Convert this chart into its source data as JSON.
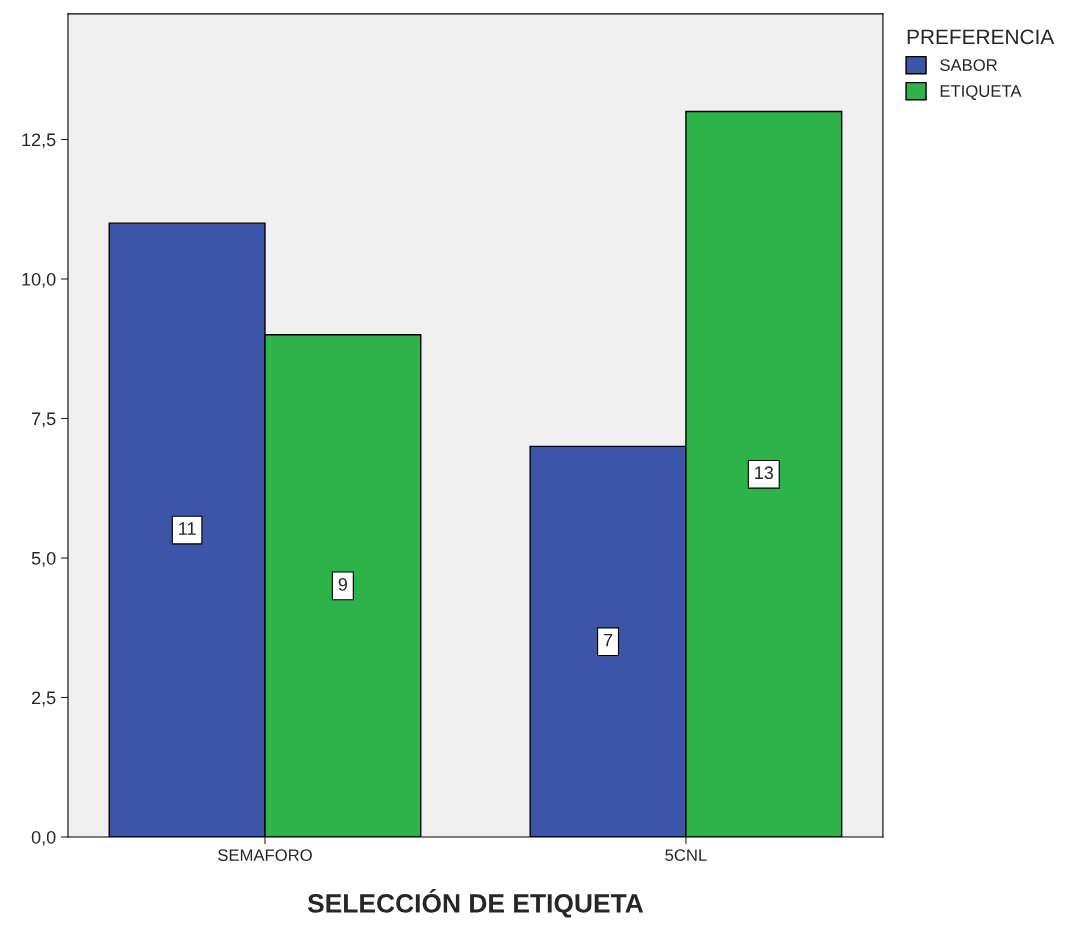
{
  "chart_data": {
    "type": "bar",
    "xlabel": "SELECCIÓN DE ETIQUETA",
    "legend_title": "PREFERENCIA",
    "categories": [
      "SEMAFORO",
      "5CNL"
    ],
    "series": [
      {
        "name": "SABOR",
        "color": "#3d55a8",
        "values": [
          11,
          7
        ]
      },
      {
        "name": "ETIQUETA",
        "color": "#2db34a",
        "values": [
          9,
          13
        ]
      }
    ],
    "ylim": [
      0,
      14.75
    ],
    "yticks": [
      {
        "value": 0,
        "label": "0,0"
      },
      {
        "value": 2.5,
        "label": "2,5"
      },
      {
        "value": 5,
        "label": "5,0"
      },
      {
        "value": 7.5,
        "label": "7,5"
      },
      {
        "value": 10,
        "label": "10,0"
      },
      {
        "value": 12.5,
        "label": "12,5"
      }
    ],
    "data_labels": true,
    "grid": false,
    "legend": "top right"
  }
}
